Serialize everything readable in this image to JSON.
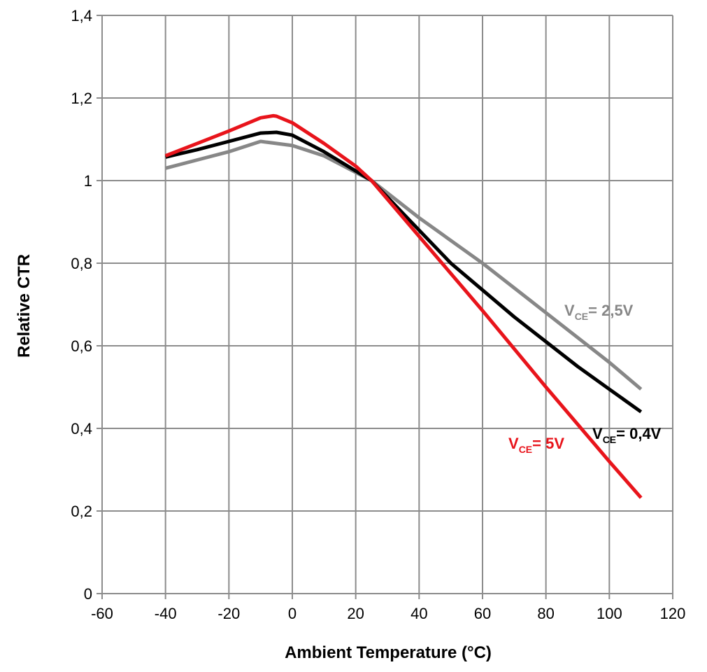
{
  "chart_data": {
    "type": "line",
    "xlabel": "Ambient Temperature (°C)",
    "ylabel": "Relative CTR",
    "xlim": [
      -60,
      120
    ],
    "ylim": [
      0,
      1.4
    ],
    "x_ticks": [
      -60,
      -40,
      -20,
      0,
      20,
      40,
      60,
      80,
      100,
      120
    ],
    "x_tick_labels": [
      "-60",
      "-40",
      "-20",
      "0",
      "20",
      "40",
      "60",
      "80",
      "100",
      "120"
    ],
    "y_ticks": [
      0,
      0.2,
      0.4,
      0.6,
      0.8,
      1.0,
      1.2,
      1.4
    ],
    "y_tick_labels": [
      "0",
      "0,2",
      "0,4",
      "0,6",
      "0,8",
      "1",
      "1,2",
      "1,4"
    ],
    "grid": true,
    "series": [
      {
        "name": "VCE= 2,5V",
        "label_main": "V",
        "label_sub": "CE",
        "label_rest": "= 2,5V",
        "color": "#878787",
        "x": [
          -40,
          -30,
          -20,
          -10,
          0,
          10,
          25,
          40,
          60,
          80,
          100,
          110
        ],
        "y": [
          1.03,
          1.05,
          1.07,
          1.095,
          1.085,
          1.06,
          1.0,
          0.91,
          0.8,
          0.68,
          0.56,
          0.495
        ]
      },
      {
        "name": "VCE= 0,4V",
        "label_main": "V",
        "label_sub": "CE",
        "label_rest": "= 0,4V",
        "color": "#000000",
        "x": [
          -40,
          -30,
          -20,
          -10,
          -5,
          0,
          10,
          25,
          40,
          50,
          60,
          70,
          80,
          90,
          100,
          110
        ],
        "y": [
          1.057,
          1.075,
          1.095,
          1.115,
          1.117,
          1.11,
          1.07,
          1.0,
          0.88,
          0.8,
          0.735,
          0.67,
          0.61,
          0.55,
          0.495,
          0.44
        ]
      },
      {
        "name": "VCE= 5V",
        "label_main": "V",
        "label_sub": "CE",
        "label_rest": "= 5V",
        "color": "#e8141b",
        "x": [
          -40,
          -30,
          -20,
          -10,
          -6,
          -5,
          0,
          10,
          20,
          25,
          40,
          60,
          80,
          100,
          110
        ],
        "y": [
          1.06,
          1.09,
          1.12,
          1.152,
          1.157,
          1.156,
          1.14,
          1.09,
          1.035,
          1.0,
          0.865,
          0.685,
          0.5,
          0.32,
          0.232
        ]
      }
    ]
  }
}
